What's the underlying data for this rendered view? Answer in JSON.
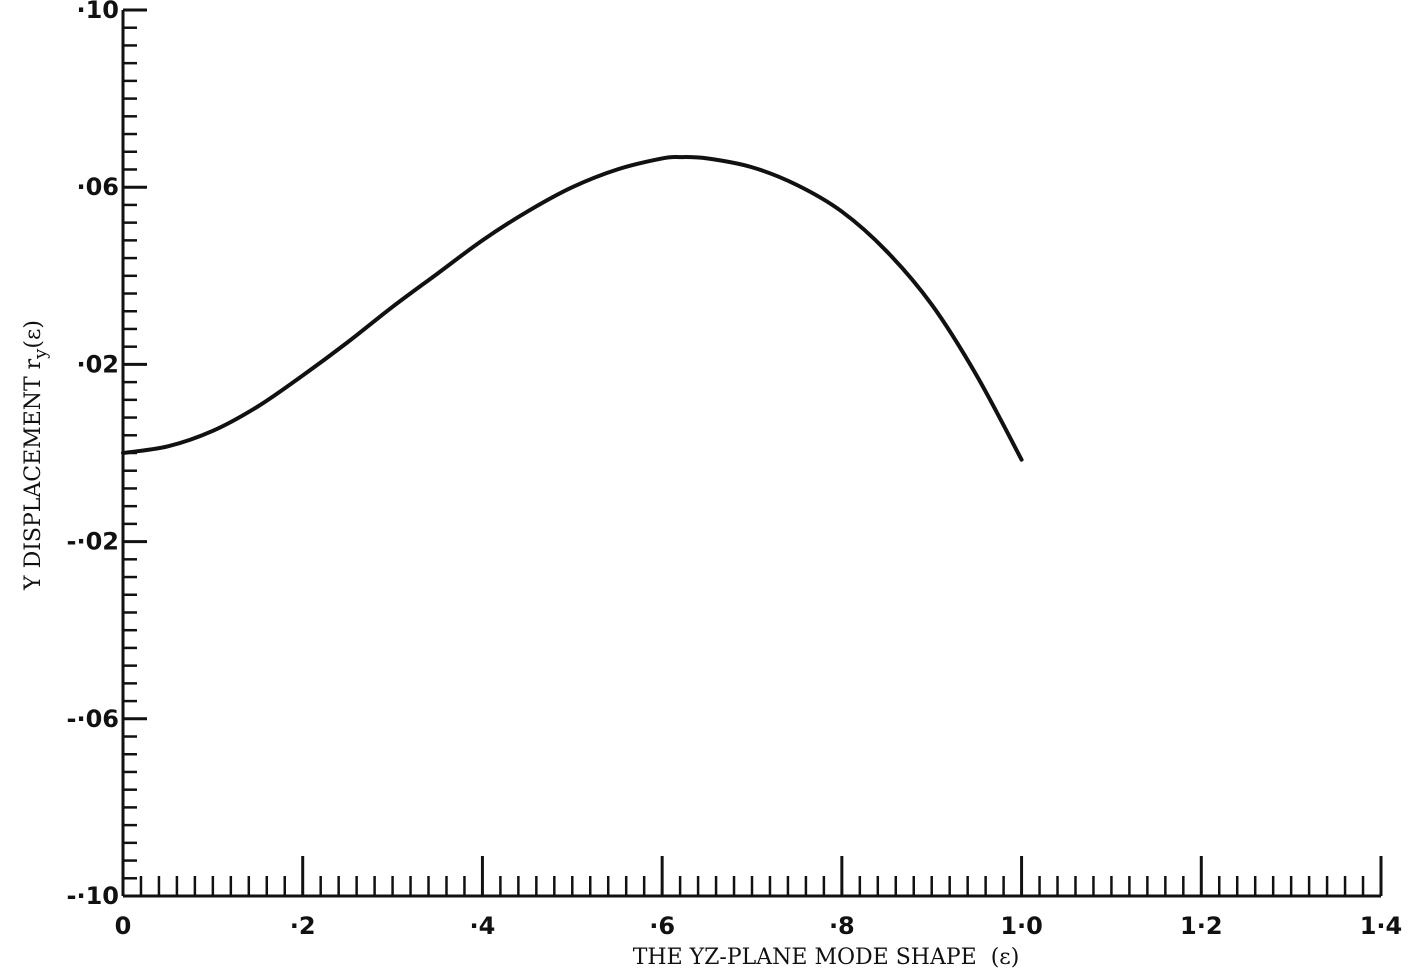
{
  "chart_data": {
    "type": "line",
    "title": "",
    "xlabel": "THE YZ-PLANE MODE SHAPE  (ε)",
    "ylabel": "Y DISPLACEMENT r",
    "ylabel_subscript": "y",
    "ylabel_suffix": "(ε)",
    "xlim": [
      0,
      1.4
    ],
    "ylim": [
      -0.1,
      0.1
    ],
    "x_major_ticks": [
      0,
      0.2,
      0.4,
      0.6,
      0.8,
      1.0,
      1.2,
      1.4
    ],
    "x_tick_labels": [
      "0",
      "·2",
      "·4",
      "·6",
      "·8",
      "1·0",
      "1·2",
      "1·4"
    ],
    "x_minor_step": 0.02,
    "y_major_ticks": [
      0.1,
      0.06,
      0.02,
      -0.02,
      -0.06,
      -0.1
    ],
    "y_tick_labels": [
      "·10",
      "·06",
      "·02",
      "-·02",
      "-·06",
      "-·10"
    ],
    "y_minor_step": 0.004,
    "grid": false,
    "line_color": "#111111",
    "series": [
      {
        "x": [
          0,
          0.05,
          0.1,
          0.15,
          0.2,
          0.25,
          0.3,
          0.35,
          0.4,
          0.45,
          0.5,
          0.55,
          0.6,
          0.62,
          0.65,
          0.7,
          0.75,
          0.8,
          0.85,
          0.9,
          0.95,
          1.0
        ],
        "values": [
          0,
          0.0015,
          0.005,
          0.0105,
          0.0175,
          0.025,
          0.033,
          0.0405,
          0.048,
          0.0545,
          0.06,
          0.064,
          0.0665,
          0.0668,
          0.0665,
          0.0645,
          0.0605,
          0.0545,
          0.0455,
          0.0335,
          0.0175,
          -0.0015
        ]
      }
    ]
  }
}
